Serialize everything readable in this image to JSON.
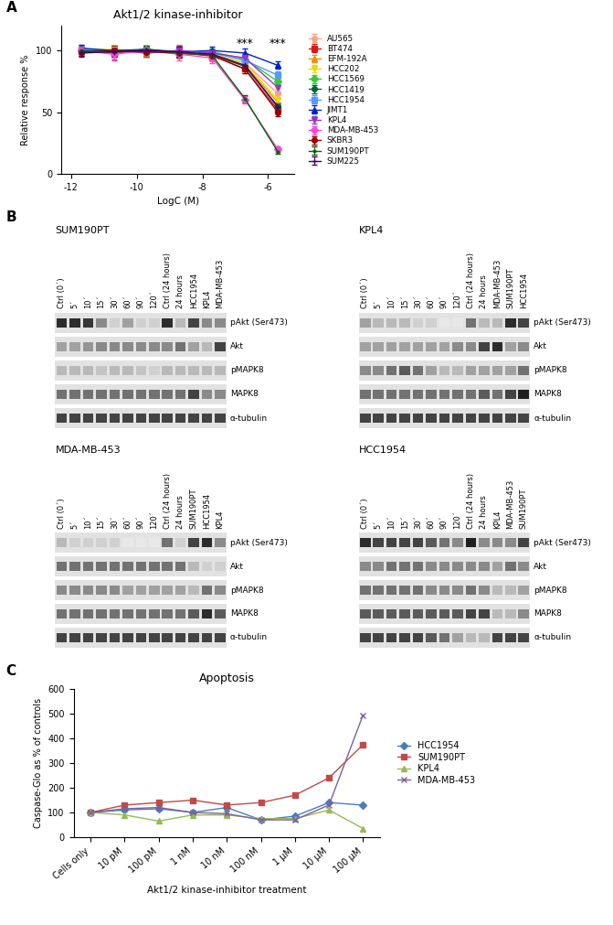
{
  "chart_data": [
    {
      "type": "line",
      "panel_label": "A",
      "title": "Akt1/2 kinase-inhibitor",
      "x_label": "LogC (M)",
      "y_label": "Relative response %",
      "x": [
        -11.7,
        -10.7,
        -9.7,
        -8.7,
        -7.7,
        -6.7,
        -5.7
      ],
      "xlim": [
        -12.3,
        -5.2
      ],
      "xticks": [
        -12,
        -10,
        -8,
        -6
      ],
      "ylim": [
        0,
        120
      ],
      "yticks": [
        0,
        50,
        100
      ],
      "grid": false,
      "legend": "right",
      "annotations": [
        {
          "text": "***",
          "x": -6.7,
          "y": 106
        },
        {
          "text": "***",
          "x": -5.7,
          "y": 106
        }
      ],
      "series": [
        {
          "name": "AU565",
          "color": "#f4a582",
          "marker": "circle",
          "values": [
            100,
            99,
            100,
            98,
            97,
            90,
            65
          ],
          "errors": [
            3,
            4,
            3,
            4,
            3,
            4,
            4
          ]
        },
        {
          "name": "BT474",
          "color": "#d7191c",
          "marker": "square",
          "values": [
            100,
            98,
            100,
            99,
            96,
            85,
            52
          ],
          "errors": [
            3,
            5,
            3,
            4,
            4,
            3,
            3
          ]
        },
        {
          "name": "EFM-192A",
          "color": "#f08c00",
          "marker": "triangle",
          "values": [
            101,
            100,
            98,
            100,
            95,
            88,
            58
          ],
          "errors": [
            4,
            4,
            3,
            5,
            4,
            3,
            3
          ]
        },
        {
          "name": "HCC202",
          "color": "#f2d600",
          "marker": "triangle_down",
          "values": [
            100,
            101,
            99,
            98,
            97,
            90,
            60
          ],
          "errors": [
            3,
            3,
            4,
            4,
            3,
            3,
            4
          ]
        },
        {
          "name": "HCC1569",
          "color": "#33cc33",
          "marker": "diamond",
          "values": [
            100,
            99,
            101,
            98,
            99,
            93,
            75
          ],
          "errors": [
            3,
            4,
            3,
            4,
            3,
            3,
            3
          ]
        },
        {
          "name": "HCC1419",
          "color": "#006633",
          "marker": "circle",
          "values": [
            100,
            100,
            99,
            100,
            97,
            87,
            55
          ],
          "errors": [
            3,
            3,
            4,
            3,
            4,
            3,
            3
          ]
        },
        {
          "name": "HCC1954",
          "color": "#5599ff",
          "marker": "square",
          "values": [
            101,
            99,
            100,
            99,
            98,
            92,
            80
          ],
          "errors": [
            3,
            4,
            3,
            4,
            3,
            3,
            3
          ]
        },
        {
          "name": "JIMT1",
          "color": "#0022cc",
          "marker": "triangle",
          "values": [
            102,
            100,
            101,
            99,
            100,
            98,
            88
          ],
          "errors": [
            3,
            4,
            3,
            4,
            3,
            4,
            3
          ]
        },
        {
          "name": "KPL4",
          "color": "#9933cc",
          "marker": "triangle_down",
          "values": [
            99,
            100,
            98,
            100,
            98,
            94,
            70
          ],
          "errors": [
            3,
            3,
            3,
            4,
            3,
            3,
            3
          ]
        },
        {
          "name": "MDA-MB-453",
          "color": "#ff44dd",
          "marker": "diamond",
          "values": [
            100,
            97,
            100,
            97,
            94,
            60,
            20
          ],
          "errors": [
            3,
            5,
            4,
            5,
            4,
            3,
            2
          ]
        },
        {
          "name": "SKBR3",
          "color": "#990000",
          "marker": "circle",
          "values": [
            99,
            100,
            99,
            98,
            96,
            85,
            50
          ],
          "errors": [
            3,
            4,
            3,
            4,
            3,
            3,
            3
          ]
        },
        {
          "name": "SUM190PT",
          "color": "#006600",
          "marker": "dot",
          "values": [
            100,
            99,
            101,
            98,
            96,
            61,
            18
          ],
          "errors": [
            3,
            4,
            3,
            4,
            3,
            3,
            2
          ]
        },
        {
          "name": "SUM225",
          "color": "#440066",
          "marker": "plus",
          "values": [
            98,
            99,
            100,
            99,
            97,
            88,
            54
          ],
          "errors": [
            3,
            4,
            3,
            4,
            3,
            3,
            3
          ]
        }
      ]
    },
    {
      "type": "line",
      "panel_label": "C",
      "title": "Apoptosis",
      "x_label": "Akt1/2 kinase-inhibitor treatment",
      "y_label": "Caspase-Glo as % of controls",
      "categories": [
        "Cells only",
        "10 pM",
        "100 pM",
        "1 nM",
        "10 nM",
        "100 nM",
        "1 µM",
        "10 µM",
        "100 µM"
      ],
      "ylim": [
        0,
        600
      ],
      "yticks": [
        0,
        100,
        200,
        300,
        400,
        500,
        600
      ],
      "grid": false,
      "legend": "right",
      "series": [
        {
          "name": "HCC1954",
          "color": "#4a7ebb",
          "marker": "diamond",
          "values": [
            100,
            110,
            115,
            100,
            120,
            70,
            85,
            140,
            130
          ]
        },
        {
          "name": "SUM190PT",
          "color": "#be4b48",
          "marker": "square",
          "values": [
            100,
            130,
            140,
            150,
            130,
            140,
            170,
            240,
            375
          ]
        },
        {
          "name": "KPL4",
          "color": "#98b954",
          "marker": "triangle",
          "values": [
            100,
            90,
            65,
            90,
            90,
            75,
            75,
            110,
            35
          ]
        },
        {
          "name": "MDA-MB-453",
          "color": "#7d60a0",
          "marker": "x",
          "values": [
            100,
            115,
            120,
            100,
            95,
            70,
            70,
            130,
            495
          ]
        }
      ]
    }
  ],
  "western_blots": {
    "panel_label": "B",
    "blots": [
      {
        "title": "SUM190PT",
        "lanes": [
          "Ctrl (0´)",
          "5´",
          "10´",
          "15´",
          "30´",
          "60´",
          "90´",
          "120´",
          "Ctrl (24 hours)",
          "24 hours",
          "HCC1954",
          "KPL4",
          "MDA-MB-453"
        ],
        "rows": [
          {
            "label": "pAkt (Ser473)",
            "intensity": [
              0.9,
              0.9,
              0.85,
              0.5,
              0.2,
              0.4,
              0.2,
              0.2,
              0.9,
              0.3,
              0.8,
              0.5,
              0.5
            ]
          },
          {
            "label": "Akt",
            "intensity": [
              0.4,
              0.4,
              0.45,
              0.5,
              0.5,
              0.5,
              0.5,
              0.5,
              0.5,
              0.6,
              0.4,
              0.3,
              0.8
            ]
          },
          {
            "label": "pMAPK8",
            "intensity": [
              0.3,
              0.3,
              0.3,
              0.25,
              0.3,
              0.3,
              0.25,
              0.2,
              0.3,
              0.3,
              0.3,
              0.3,
              0.3
            ]
          },
          {
            "label": "MAPK8",
            "intensity": [
              0.6,
              0.6,
              0.6,
              0.6,
              0.6,
              0.6,
              0.6,
              0.6,
              0.6,
              0.6,
              0.8,
              0.5,
              0.5
            ]
          },
          {
            "label": "α-tubulin",
            "intensity": [
              0.8,
              0.8,
              0.8,
              0.8,
              0.8,
              0.8,
              0.8,
              0.8,
              0.8,
              0.8,
              0.8,
              0.8,
              0.8
            ]
          }
        ]
      },
      {
        "title": "KPL4",
        "lanes": [
          "Ctrl (0´)",
          "5´",
          "10´",
          "15´",
          "30´",
          "60´",
          "90´",
          "120´",
          "Ctrl (24 hours)",
          "24 hours",
          "MDA-MB-453",
          "SUM190PT",
          "HCC1954"
        ],
        "rows": [
          {
            "label": "pAkt (Ser473)",
            "intensity": [
              0.4,
              0.3,
              0.3,
              0.3,
              0.2,
              0.2,
              0.1,
              0.1,
              0.6,
              0.3,
              0.3,
              0.9,
              0.8
            ]
          },
          {
            "label": "Akt",
            "intensity": [
              0.4,
              0.4,
              0.4,
              0.4,
              0.4,
              0.4,
              0.4,
              0.5,
              0.5,
              0.8,
              0.9,
              0.4,
              0.5
            ]
          },
          {
            "label": "pMAPK8",
            "intensity": [
              0.5,
              0.5,
              0.6,
              0.7,
              0.6,
              0.4,
              0.3,
              0.3,
              0.4,
              0.4,
              0.4,
              0.4,
              0.6
            ]
          },
          {
            "label": "MAPK8",
            "intensity": [
              0.6,
              0.6,
              0.6,
              0.6,
              0.6,
              0.6,
              0.6,
              0.6,
              0.6,
              0.7,
              0.6,
              0.8,
              0.95
            ]
          },
          {
            "label": "α-tubulin",
            "intensity": [
              0.8,
              0.8,
              0.8,
              0.8,
              0.8,
              0.8,
              0.8,
              0.8,
              0.8,
              0.8,
              0.8,
              0.8,
              0.8
            ]
          }
        ]
      },
      {
        "title": "MDA-MB-453",
        "lanes": [
          "Ctrl (0´)",
          "5´",
          "10´",
          "15´",
          "30´",
          "60´",
          "90´",
          "120´",
          "Ctrl (24 hours)",
          "24 hours",
          "SUM190PT",
          "HCC1954",
          "KPL4"
        ],
        "rows": [
          {
            "label": "pAkt (Ser473)",
            "intensity": [
              0.3,
              0.2,
              0.2,
              0.2,
              0.2,
              0.1,
              0.1,
              0.1,
              0.6,
              0.2,
              0.8,
              0.9,
              0.5
            ]
          },
          {
            "label": "Akt",
            "intensity": [
              0.6,
              0.6,
              0.6,
              0.6,
              0.6,
              0.6,
              0.6,
              0.6,
              0.6,
              0.6,
              0.3,
              0.2,
              0.2
            ]
          },
          {
            "label": "pMAPK8",
            "intensity": [
              0.5,
              0.5,
              0.5,
              0.5,
              0.5,
              0.4,
              0.4,
              0.4,
              0.4,
              0.4,
              0.3,
              0.6,
              0.5
            ]
          },
          {
            "label": "MAPK8",
            "intensity": [
              0.6,
              0.6,
              0.6,
              0.6,
              0.6,
              0.6,
              0.6,
              0.6,
              0.6,
              0.6,
              0.7,
              0.9,
              0.7
            ]
          },
          {
            "label": "α-tubulin",
            "intensity": [
              0.8,
              0.8,
              0.8,
              0.8,
              0.8,
              0.8,
              0.8,
              0.8,
              0.8,
              0.8,
              0.8,
              0.8,
              0.8
            ]
          }
        ]
      },
      {
        "title": "HCC1954",
        "lanes": [
          "Ctrl (0´)",
          "5´",
          "10´",
          "15´",
          "30´",
          "60´",
          "90´",
          "120´",
          "Ctrl (24 hours)",
          "24 hours",
          "KPL4",
          "MDA-MB-453",
          "SUM190PT"
        ],
        "rows": [
          {
            "label": "pAkt (Ser473)",
            "intensity": [
              0.9,
              0.8,
              0.8,
              0.8,
              0.8,
              0.7,
              0.6,
              0.5,
              0.95,
              0.5,
              0.5,
              0.5,
              0.8
            ]
          },
          {
            "label": "Akt",
            "intensity": [
              0.5,
              0.5,
              0.6,
              0.6,
              0.6,
              0.5,
              0.5,
              0.5,
              0.5,
              0.5,
              0.4,
              0.6,
              0.5
            ]
          },
          {
            "label": "pMAPK8",
            "intensity": [
              0.6,
              0.6,
              0.6,
              0.6,
              0.6,
              0.5,
              0.5,
              0.5,
              0.6,
              0.5,
              0.3,
              0.3,
              0.4
            ]
          },
          {
            "label": "MAPK8",
            "intensity": [
              0.7,
              0.7,
              0.7,
              0.7,
              0.7,
              0.7,
              0.7,
              0.7,
              0.8,
              0.8,
              0.3,
              0.3,
              0.5
            ]
          },
          {
            "label": "α-tubulin",
            "intensity": [
              0.8,
              0.8,
              0.8,
              0.8,
              0.8,
              0.7,
              0.6,
              0.4,
              0.3,
              0.3,
              0.8,
              0.8,
              0.8
            ]
          }
        ]
      }
    ]
  }
}
